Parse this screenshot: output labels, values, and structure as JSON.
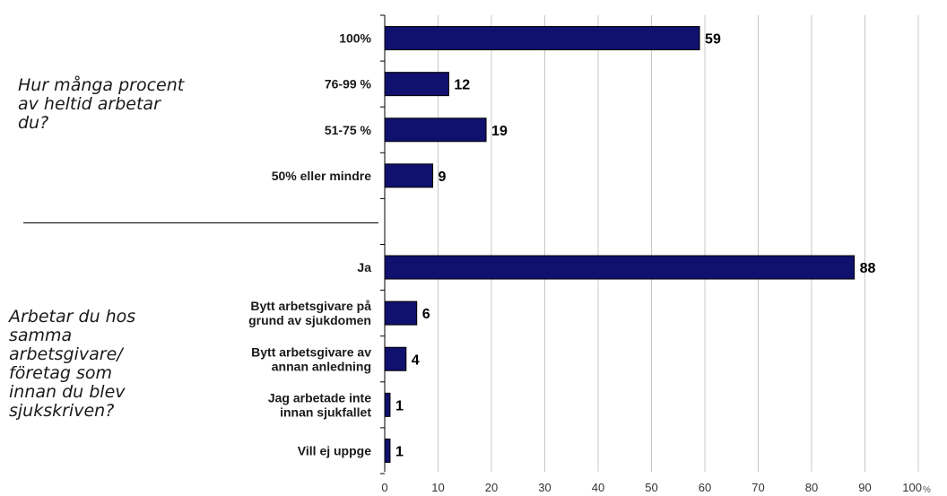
{
  "questions": [
    "Hur många procent\nav heltid arbetar\ndu?",
    "Arbetar du hos\nsamma\narbetsgivare/\nföretag som\ninnan du blev\nsjukskriven?"
  ],
  "chart_data": {
    "type": "bar",
    "orientation": "horizontal",
    "bar_color": "#10106e",
    "groups": [
      {
        "categories": [
          [
            "100%"
          ],
          [
            "76-99 %"
          ],
          [
            "51-75 %"
          ],
          [
            "50% eller mindre"
          ]
        ],
        "values": [
          59,
          12,
          19,
          9
        ]
      },
      {
        "categories": [
          [
            "Ja"
          ],
          [
            "Bytt arbetsgivare på",
            "grund av sjukdomen"
          ],
          [
            "Bytt arbetsgivare av",
            "annan anledning"
          ],
          [
            "Jag arbetade inte",
            "innan sjukfallet"
          ],
          [
            "Vill ej uppge"
          ]
        ],
        "values": [
          88,
          6,
          4,
          1,
          1
        ]
      }
    ],
    "xlim": [
      0,
      100
    ],
    "xticks": [
      "0",
      "10",
      "20",
      "30",
      "40",
      "50",
      "60",
      "70",
      "80",
      "90",
      "100"
    ],
    "x_unit": "%",
    "grid": "vertical"
  }
}
